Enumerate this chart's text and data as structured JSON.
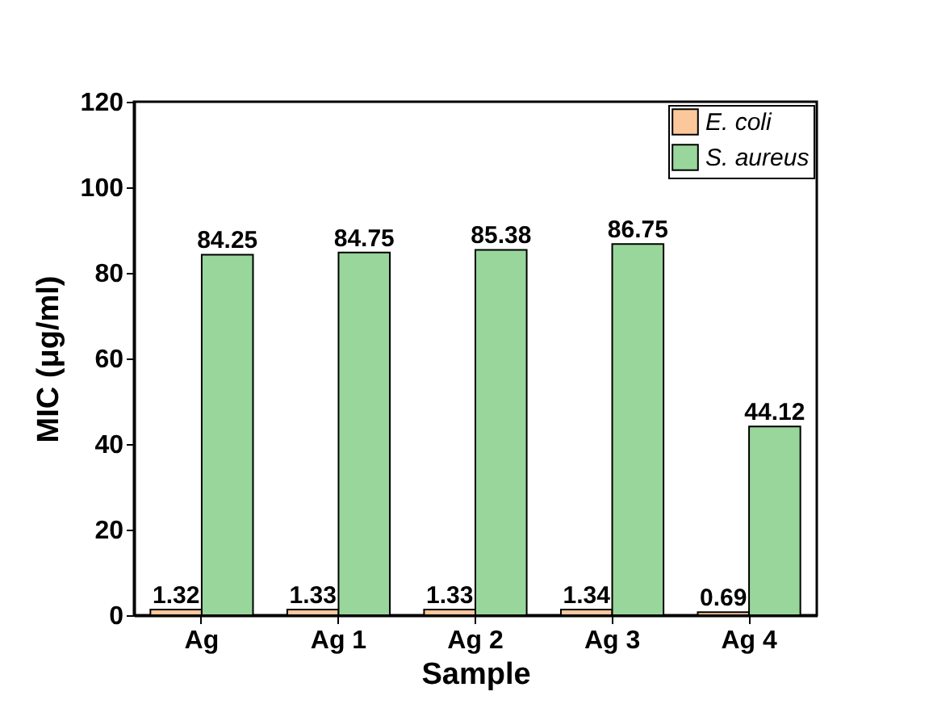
{
  "chart_data": {
    "type": "bar",
    "xlabel": "Sample",
    "ylabel": "MIC (μg/ml)",
    "categories": [
      "Ag",
      "Ag 1",
      "Ag 2",
      "Ag 3",
      "Ag 4"
    ],
    "series": [
      {
        "name": "E. coli",
        "color": "#fcc89b",
        "values": [
          1.32,
          1.33,
          1.33,
          1.34,
          0.69
        ]
      },
      {
        "name": "S. aureus",
        "color": "#99d69b",
        "values": [
          84.25,
          84.75,
          85.38,
          86.75,
          44.12
        ]
      }
    ],
    "ylim": [
      0,
      120
    ],
    "yticks": [
      0,
      20,
      40,
      60,
      80,
      100,
      120
    ],
    "data_labels": true,
    "legend": "top right",
    "grid": false
  }
}
